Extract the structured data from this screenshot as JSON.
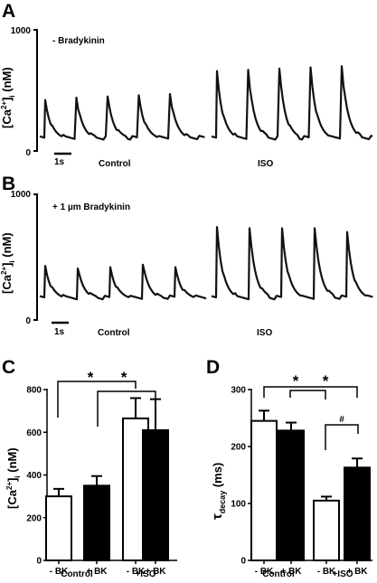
{
  "panels": {
    "a": {
      "letter": "A",
      "annotation": "- Bradykinin",
      "ylabel_main": "[Ca",
      "ylabel_sup": "2+",
      "ylabel_mid": "]",
      "ylabel_sub": "i",
      "ylabel_unit": " (nM)",
      "ytick_top": "1000",
      "ytick_bottom": "0",
      "scale_bar": "1s",
      "condition_left": "Control",
      "condition_right": "ISO"
    },
    "b": {
      "letter": "B",
      "annotation": "+ 1 µm Bradykinin",
      "ylabel_main": "[Ca",
      "ylabel_sup": "2+",
      "ylabel_mid": "]",
      "ylabel_sub": "i",
      "ylabel_unit": " (nM)",
      "ytick_top": "1000",
      "ytick_bottom": "0",
      "scale_bar": "1s",
      "condition_left": "Control",
      "condition_right": "ISO"
    },
    "c": {
      "letter": "C",
      "ylabel_main": "[Ca",
      "ylabel_sup": "2+",
      "ylabel_mid": "]",
      "ylabel_sub": "i",
      "ylabel_unit": " (nM)",
      "star1": "*",
      "star2": "*",
      "group_left": "Control",
      "group_right": "+ISO"
    },
    "d": {
      "letter": "D",
      "ylabel_main": "τ",
      "ylabel_sub": "decay",
      "ylabel_unit": " (ms)",
      "star1": "*",
      "star2": "*",
      "hash": "#",
      "group_left": "Control",
      "group_right": "+ISO"
    }
  },
  "chart_data": [
    {
      "type": "line",
      "panel": "A",
      "ylim": [
        0,
        1000
      ],
      "series": [
        {
          "name": "Control",
          "peaks": [
            420,
            440,
            450,
            460,
            470
          ]
        },
        {
          "name": "ISO",
          "peaks": [
            660,
            670,
            680,
            690,
            700
          ]
        }
      ],
      "baseline": 110
    },
    {
      "type": "line",
      "panel": "B",
      "ylim": [
        0,
        1000
      ],
      "series": [
        {
          "name": "Control",
          "peaks": [
            430,
            410,
            420,
            440,
            420
          ]
        },
        {
          "name": "ISO",
          "peaks": [
            740,
            730,
            730,
            730,
            700
          ]
        }
      ],
      "baseline": 180
    },
    {
      "type": "bar",
      "panel": "C",
      "categories": [
        "- BK",
        "+ BK",
        "- BK",
        "+ BK"
      ],
      "groups": [
        "Control",
        "Control",
        "+ISO",
        "+ISO"
      ],
      "values": [
        300,
        350,
        665,
        610
      ],
      "errors": [
        35,
        45,
        95,
        145
      ],
      "fill": [
        "white",
        "black",
        "white",
        "black"
      ],
      "ylim": [
        0,
        800
      ],
      "yticks": [
        "0",
        "200",
        "400",
        "600",
        "800"
      ]
    },
    {
      "type": "bar",
      "panel": "D",
      "categories": [
        "- BK",
        "+ BK",
        "- BK",
        "+ BK"
      ],
      "groups": [
        "Control",
        "Control",
        "+ISO",
        "+ISO"
      ],
      "values": [
        245,
        228,
        105,
        163
      ],
      "errors": [
        18,
        14,
        7,
        16
      ],
      "fill": [
        "white",
        "black",
        "white",
        "black"
      ],
      "ylim": [
        0,
        300
      ],
      "yticks": [
        "0",
        "100",
        "200",
        "300"
      ]
    }
  ]
}
